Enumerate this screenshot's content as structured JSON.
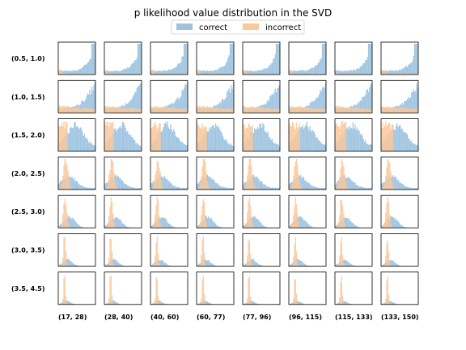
{
  "chart_data": {
    "type": "histogram-grid",
    "title": "p likelihood value distribution in the SVD",
    "legend": {
      "placement": "top-center",
      "entries": [
        {
          "name": "correct",
          "color": "#9dc3df"
        },
        {
          "name": "incorrect",
          "color": "#f9c89b"
        }
      ]
    },
    "row_labels": [
      "(0.5, 1.0)",
      "(1.0, 1.5)",
      "(1.5, 2.0)",
      "(2.0, 2.5)",
      "(2.5, 3.0)",
      "(3.0, 3.5)",
      "(3.5, 4.5)"
    ],
    "col_labels": [
      "(17, 28)",
      "(28, 40)",
      "(40, 60)",
      "(60, 77)",
      "(77, 96)",
      "(96, 115)",
      "(115, 133)",
      "(133, 150)"
    ],
    "bins_per_panel": 36,
    "ticks_visible": false,
    "grid": false,
    "series_shapes_by_row": [
      {
        "row": "(0.5, 1.0)",
        "correct": "rising toward right edge, sharp peak at last bins",
        "incorrect": "small near left, tiny elsewhere"
      },
      {
        "row": "(1.0, 1.5)",
        "correct": "rising toward right edge, broader",
        "incorrect": "low flat spread from left"
      },
      {
        "row": "(1.5, 2.0)",
        "correct": "broad hump across middle",
        "incorrect": "tall block on left third"
      },
      {
        "row": "(2.0, 2.5)",
        "correct": "decaying tail to the right",
        "incorrect": "peak near left"
      },
      {
        "row": "(2.5, 3.0)",
        "correct": "shorter tail",
        "incorrect": "narrow peak near left"
      },
      {
        "row": "(3.0, 3.5)",
        "correct": "small tail",
        "incorrect": "very narrow tall peak near left"
      },
      {
        "row": "(3.5, 4.5)",
        "correct": "tiny tail",
        "incorrect": "very narrow tall peak near left"
      }
    ]
  }
}
